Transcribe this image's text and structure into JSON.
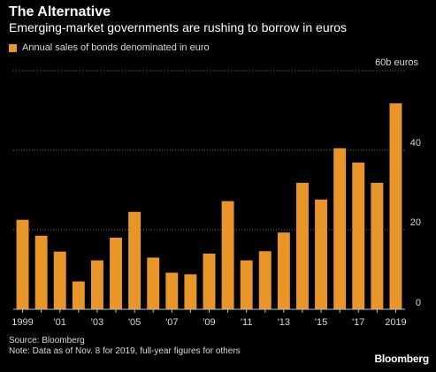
{
  "title": "The Alternative",
  "subtitle": "Emerging-market governments are rushing to borrow in euros",
  "legend_label": "Annual sales of bonds denominated in euro",
  "unit_label": "60b euros",
  "source": "Source: Bloomberg",
  "note": "Note: Data as of Nov. 8 for 2019, full-year figures for others",
  "brand": "Bloomberg",
  "colors": {
    "background": "#000000",
    "bar": "#e8962a",
    "grid": "#6b6b6b",
    "axis": "#bfbfbf",
    "text": "#d9d9d9"
  },
  "chart_data": {
    "type": "bar",
    "categories": [
      "1999",
      "2000",
      "2001",
      "2002",
      "2003",
      "2004",
      "2005",
      "2006",
      "2007",
      "2008",
      "2009",
      "2010",
      "2011",
      "2012",
      "2013",
      "2014",
      "2015",
      "2016",
      "2017",
      "2018",
      "2019"
    ],
    "values": [
      22.5,
      18.5,
      14.5,
      7,
      12.3,
      18,
      24.5,
      13,
      9.2,
      8.8,
      14,
      27.2,
      12.3,
      14.6,
      19.3,
      31.8,
      27.6,
      40.5,
      36.9,
      31.8,
      51.8
    ],
    "x_tick_labels": [
      "1999",
      "'01",
      "'03",
      "'05",
      "'07",
      "'09",
      "'11",
      "'13",
      "'15",
      "'17",
      "2019"
    ],
    "y_ticks": [
      0,
      20,
      40
    ],
    "ylim": [
      0,
      60
    ],
    "grid": true
  }
}
